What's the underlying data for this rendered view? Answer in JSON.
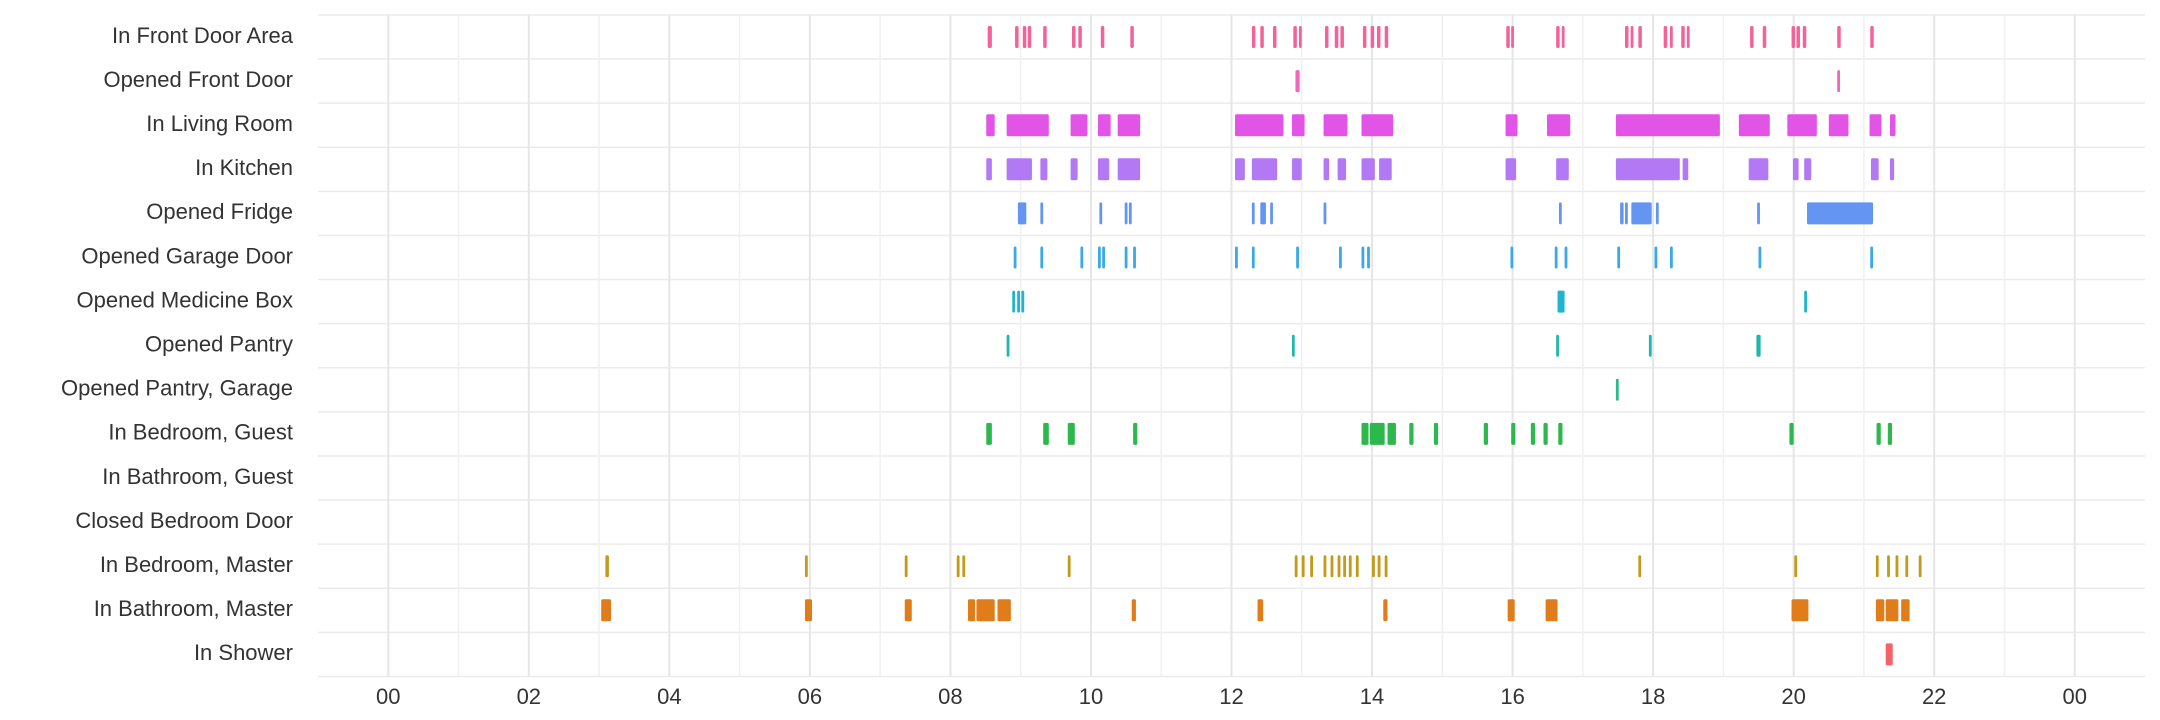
{
  "chart_data": {
    "type": "timeline",
    "categories": [
      "In Front Door Area",
      "Opened Front Door",
      "In Living Room",
      "In Kitchen",
      "Opened Fridge",
      "Opened Garage Door",
      "Opened Medicine Box",
      "Opened Pantry",
      "Opened Pantry, Garage",
      "In Bedroom, Guest",
      "In Bathroom, Guest",
      "Closed Bedroom Door",
      "In Bedroom, Master",
      "In Bathroom, Master",
      "In Shower"
    ],
    "colors": [
      "#f4629a",
      "#ef67b8",
      "#e254e6",
      "#b379f5",
      "#6595f3",
      "#3aa9e6",
      "#20b4cf",
      "#22b7ad",
      "#2cb88a",
      "#2db84d",
      "#5bb83a",
      "#8bb02a",
      "#c49a1c",
      "#e07c1a",
      "#f2626b"
    ],
    "intervals": [
      [
        [
          8.53,
          8.59
        ],
        [
          8.92,
          8.97
        ],
        [
          9.03,
          9.08
        ],
        [
          9.1,
          9.15
        ],
        [
          9.32,
          9.37
        ],
        [
          9.73,
          9.78
        ],
        [
          9.82,
          9.87
        ],
        [
          10.14,
          10.19
        ],
        [
          10.56,
          10.61
        ],
        [
          12.29,
          12.34
        ],
        [
          12.41,
          12.46
        ],
        [
          12.59,
          12.64
        ],
        [
          12.88,
          12.93
        ],
        [
          12.96,
          13.0
        ],
        [
          13.33,
          13.38
        ],
        [
          13.47,
          13.52
        ],
        [
          13.55,
          13.6
        ],
        [
          13.87,
          13.92
        ],
        [
          13.98,
          14.03
        ],
        [
          14.07,
          14.12
        ],
        [
          14.18,
          14.23
        ],
        [
          15.91,
          15.96
        ],
        [
          15.98,
          16.02
        ],
        [
          16.62,
          16.67
        ],
        [
          16.7,
          16.74
        ],
        [
          17.6,
          17.65
        ],
        [
          17.68,
          17.72
        ],
        [
          17.79,
          17.84
        ],
        [
          18.15,
          18.2
        ],
        [
          18.24,
          18.28
        ],
        [
          18.4,
          18.45
        ],
        [
          18.48,
          18.52
        ],
        [
          19.38,
          19.43
        ],
        [
          19.56,
          19.61
        ],
        [
          19.97,
          20.02
        ],
        [
          20.04,
          20.09
        ],
        [
          20.13,
          20.18
        ],
        [
          20.62,
          20.67
        ],
        [
          21.09,
          21.14
        ]
      ],
      [
        [
          12.91,
          12.97
        ],
        [
          20.62,
          20.66
        ]
      ],
      [
        [
          8.51,
          8.63
        ],
        [
          8.8,
          9.4
        ],
        [
          9.71,
          9.95
        ],
        [
          10.1,
          10.28
        ],
        [
          10.38,
          10.7
        ],
        [
          12.05,
          12.74
        ],
        [
          12.86,
          13.04
        ],
        [
          13.31,
          13.65
        ],
        [
          13.85,
          14.3
        ],
        [
          15.9,
          16.07
        ],
        [
          16.49,
          16.82
        ],
        [
          17.47,
          18.95
        ],
        [
          19.22,
          19.66
        ],
        [
          19.91,
          20.33
        ],
        [
          20.5,
          20.78
        ],
        [
          21.08,
          21.25
        ],
        [
          21.37,
          21.45
        ]
      ],
      [
        [
          8.51,
          8.59
        ],
        [
          8.8,
          9.16
        ],
        [
          9.28,
          9.38
        ],
        [
          9.71,
          9.81
        ],
        [
          10.1,
          10.26
        ],
        [
          10.38,
          10.7
        ],
        [
          12.05,
          12.19
        ],
        [
          12.29,
          12.65
        ],
        [
          12.86,
          13.0
        ],
        [
          13.31,
          13.39
        ],
        [
          13.51,
          13.63
        ],
        [
          13.85,
          14.04
        ],
        [
          14.1,
          14.28
        ],
        [
          15.9,
          16.05
        ],
        [
          16.62,
          16.8
        ],
        [
          17.47,
          18.38
        ],
        [
          18.42,
          18.5
        ],
        [
          19.36,
          19.64
        ],
        [
          19.99,
          20.07
        ],
        [
          20.15,
          20.25
        ],
        [
          21.1,
          21.21
        ],
        [
          21.37,
          21.43
        ]
      ],
      [
        [
          8.96,
          9.08
        ],
        [
          9.28,
          9.32
        ],
        [
          10.12,
          10.16
        ],
        [
          10.48,
          10.52
        ],
        [
          10.54,
          10.58
        ],
        [
          12.29,
          12.33
        ],
        [
          12.41,
          12.49
        ],
        [
          12.55,
          12.59
        ],
        [
          13.31,
          13.35
        ],
        [
          16.66,
          16.7
        ],
        [
          17.53,
          17.58
        ],
        [
          17.6,
          17.64
        ],
        [
          17.69,
          17.98
        ],
        [
          18.04,
          18.08
        ],
        [
          19.48,
          19.52
        ],
        [
          20.19,
          21.13
        ]
      ],
      [
        [
          8.9,
          8.94
        ],
        [
          9.28,
          9.32
        ],
        [
          9.85,
          9.89
        ],
        [
          10.1,
          10.14
        ],
        [
          10.16,
          10.2
        ],
        [
          10.48,
          10.52
        ],
        [
          10.6,
          10.64
        ],
        [
          12.05,
          12.09
        ],
        [
          12.29,
          12.33
        ],
        [
          12.92,
          12.96
        ],
        [
          13.53,
          13.57
        ],
        [
          13.85,
          13.89
        ],
        [
          13.93,
          13.97
        ],
        [
          15.97,
          16.01
        ],
        [
          16.6,
          16.64
        ],
        [
          16.74,
          16.78
        ],
        [
          17.49,
          17.53
        ],
        [
          18.02,
          18.06
        ],
        [
          18.24,
          18.28
        ],
        [
          19.5,
          19.54
        ],
        [
          21.09,
          21.13
        ]
      ],
      [
        [
          8.88,
          8.92
        ],
        [
          8.95,
          8.99
        ],
        [
          9.01,
          9.05
        ],
        [
          16.64,
          16.74
        ],
        [
          20.15,
          20.19
        ]
      ],
      [
        [
          8.8,
          8.84
        ],
        [
          12.86,
          12.9
        ],
        [
          16.62,
          16.66
        ],
        [
          17.94,
          17.98
        ],
        [
          19.47,
          19.53
        ]
      ],
      [
        [
          17.47,
          17.51
        ]
      ],
      [
        [
          8.51,
          8.59
        ],
        [
          9.32,
          9.4
        ],
        [
          9.67,
          9.77
        ],
        [
          10.6,
          10.66
        ],
        [
          13.85,
          13.95
        ],
        [
          13.97,
          14.18
        ],
        [
          14.22,
          14.34
        ],
        [
          14.53,
          14.59
        ],
        [
          14.88,
          14.94
        ],
        [
          15.59,
          15.65
        ],
        [
          15.98,
          16.04
        ],
        [
          16.26,
          16.32
        ],
        [
          16.44,
          16.5
        ],
        [
          16.65,
          16.71
        ],
        [
          19.94,
          20.0
        ],
        [
          21.18,
          21.24
        ],
        [
          21.34,
          21.4
        ]
      ],
      [],
      [],
      [
        [
          3.09,
          3.14
        ],
        [
          5.93,
          5.97
        ],
        [
          7.35,
          7.39
        ],
        [
          8.09,
          8.13
        ],
        [
          8.17,
          8.21
        ],
        [
          9.67,
          9.71
        ],
        [
          12.9,
          12.94
        ],
        [
          13.0,
          13.04
        ],
        [
          13.12,
          13.16
        ],
        [
          13.31,
          13.35
        ],
        [
          13.41,
          13.45
        ],
        [
          13.51,
          13.55
        ],
        [
          13.59,
          13.63
        ],
        [
          13.67,
          13.71
        ],
        [
          13.77,
          13.81
        ],
        [
          14.0,
          14.04
        ],
        [
          14.08,
          14.12
        ],
        [
          14.18,
          14.22
        ],
        [
          17.79,
          17.83
        ],
        [
          20.01,
          20.05
        ],
        [
          21.17,
          21.21
        ],
        [
          21.33,
          21.37
        ],
        [
          21.45,
          21.49
        ],
        [
          21.59,
          21.63
        ],
        [
          21.78,
          21.82
        ]
      ],
      [
        [
          3.03,
          3.17
        ],
        [
          5.93,
          6.03
        ],
        [
          7.35,
          7.45
        ],
        [
          8.25,
          8.35
        ],
        [
          8.37,
          8.63
        ],
        [
          8.67,
          8.86
        ],
        [
          10.58,
          10.64
        ],
        [
          12.37,
          12.45
        ],
        [
          14.16,
          14.22
        ],
        [
          15.93,
          16.03
        ],
        [
          16.47,
          16.64
        ],
        [
          19.97,
          20.21
        ],
        [
          21.17,
          21.29
        ],
        [
          21.31,
          21.49
        ],
        [
          21.53,
          21.65
        ]
      ],
      [
        [
          21.31,
          21.41
        ]
      ]
    ],
    "xlim": [
      -1,
      25
    ],
    "xticks": [
      {
        "value": 0,
        "label": "00"
      },
      {
        "value": 2,
        "label": "02"
      },
      {
        "value": 4,
        "label": "04"
      },
      {
        "value": 6,
        "label": "06"
      },
      {
        "value": 8,
        "label": "08"
      },
      10,
      12,
      14,
      16,
      18,
      20,
      22,
      {
        "value": 24,
        "label": "00"
      }
    ],
    "grid": true
  }
}
